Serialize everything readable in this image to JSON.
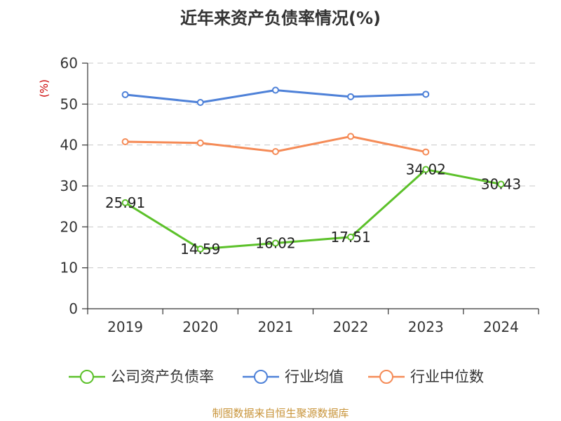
{
  "chart_data": {
    "type": "line",
    "title": "近年来资产负债率情况(%)",
    "ylabel": "(%)",
    "ylim": [
      0,
      60
    ],
    "yticks": [
      0,
      10,
      20,
      30,
      40,
      50,
      60
    ],
    "categories": [
      "2019",
      "2020",
      "2021",
      "2022",
      "2023",
      "2024"
    ],
    "grid": true,
    "legend_position": "bottom",
    "series": [
      {
        "name": "公司资产负债率",
        "color": "#5cc12a",
        "values": [
          25.91,
          14.59,
          16.02,
          17.51,
          34.02,
          30.43
        ],
        "labels": [
          "25.91",
          "14.59",
          "16.02",
          "17.51",
          "34.02",
          "30.43"
        ]
      },
      {
        "name": "行业均值",
        "color": "#4e81d8",
        "values": [
          52.3,
          50.4,
          53.4,
          51.8,
          52.4,
          null
        ]
      },
      {
        "name": "行业中位数",
        "color": "#f58b57",
        "values": [
          40.8,
          40.5,
          38.4,
          42.1,
          38.3,
          null
        ]
      }
    ],
    "source": "制图数据来自恒生聚源数据库"
  }
}
